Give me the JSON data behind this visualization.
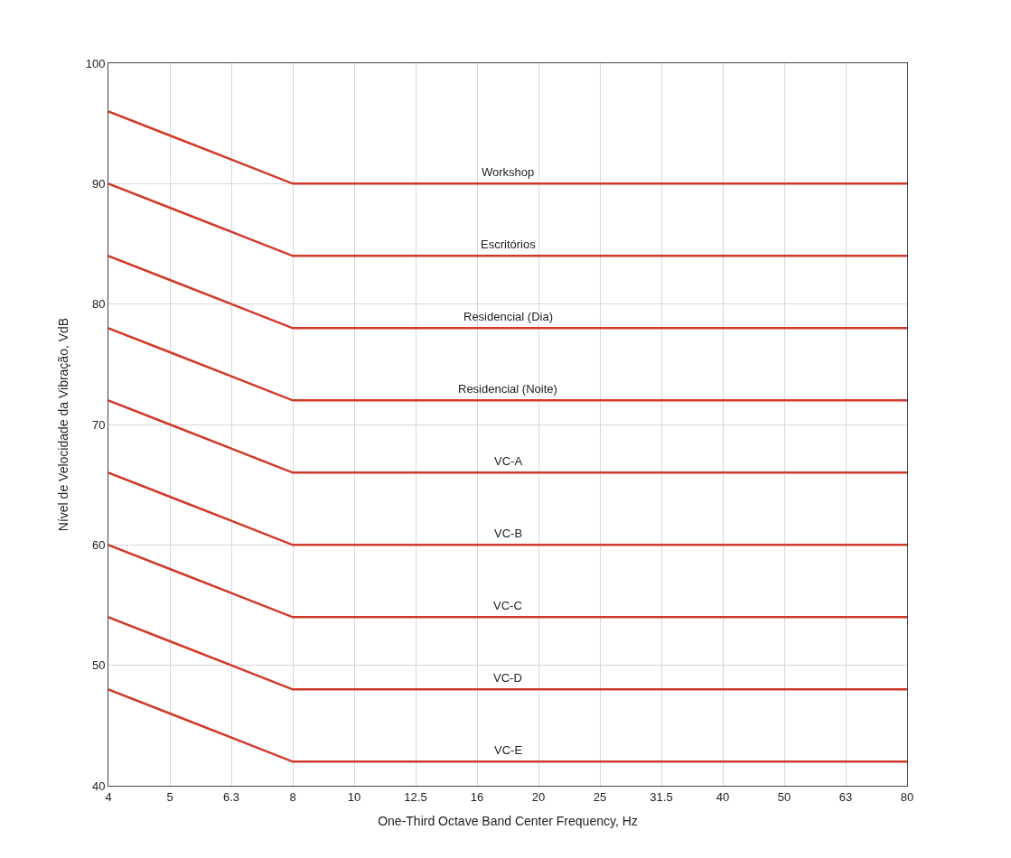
{
  "chart_data": {
    "type": "line",
    "xlabel": "One-Third Octave Band Center Frequency, Hz",
    "ylabel": "Nível de Velocidade da Vibração, VdB",
    "categories": [
      "4",
      "5",
      "6.3",
      "8",
      "10",
      "12.5",
      "16",
      "20",
      "25",
      "31.5",
      "40",
      "50",
      "63",
      "80"
    ],
    "series": [
      {
        "name": "Workshop",
        "color": "#d03a2a",
        "values": [
          96,
          94,
          92,
          90,
          90,
          90,
          90,
          90,
          90,
          90,
          90,
          90,
          90,
          90
        ]
      },
      {
        "name": "Escritórios",
        "color": "#d03a2a",
        "values": [
          90,
          88,
          86,
          84,
          84,
          84,
          84,
          84,
          84,
          84,
          84,
          84,
          84,
          84
        ]
      },
      {
        "name": "Residencial (Dia)",
        "color": "#d03a2a",
        "values": [
          84,
          82,
          80,
          78,
          78,
          78,
          78,
          78,
          78,
          78,
          78,
          78,
          78,
          78
        ]
      },
      {
        "name": "Residencial (Noite)",
        "color": "#d03a2a",
        "values": [
          78,
          76,
          74,
          72,
          72,
          72,
          72,
          72,
          72,
          72,
          72,
          72,
          72,
          72
        ]
      },
      {
        "name": "VC-A",
        "color": "#d03a2a",
        "values": [
          72,
          70,
          68,
          66,
          66,
          66,
          66,
          66,
          66,
          66,
          66,
          66,
          66,
          66
        ]
      },
      {
        "name": "VC-B",
        "color": "#d03a2a",
        "values": [
          66,
          64,
          62,
          60,
          60,
          60,
          60,
          60,
          60,
          60,
          60,
          60,
          60,
          60
        ]
      },
      {
        "name": "VC-C",
        "color": "#d03a2a",
        "values": [
          60,
          58,
          56,
          54,
          54,
          54,
          54,
          54,
          54,
          54,
          54,
          54,
          54,
          54
        ]
      },
      {
        "name": "VC-D",
        "color": "#d03a2a",
        "values": [
          54,
          52,
          50,
          48,
          48,
          48,
          48,
          48,
          48,
          48,
          48,
          48,
          48,
          48
        ]
      },
      {
        "name": "VC-E",
        "color": "#d03a2a",
        "values": [
          48,
          46,
          44,
          42,
          42,
          42,
          42,
          42,
          42,
          42,
          42,
          42,
          42,
          42
        ]
      }
    ],
    "ylim": [
      40,
      100
    ],
    "yticks": [
      40,
      50,
      60,
      70,
      80,
      90,
      100
    ],
    "grid": true,
    "legend": false,
    "marker": "none",
    "line_style": "solid"
  }
}
